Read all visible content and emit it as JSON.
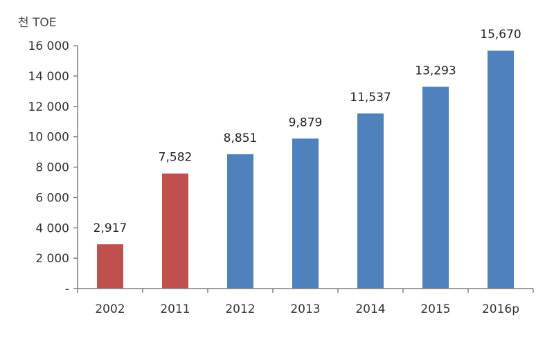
{
  "chart_data": {
    "type": "bar",
    "title": "",
    "xlabel": "",
    "ylabel": "천 TOE",
    "categories": [
      "2002",
      "2011",
      "2012",
      "2013",
      "2014",
      "2015",
      "2016p"
    ],
    "values": [
      2917,
      7582,
      8851,
      9879,
      11537,
      13293,
      15670
    ],
    "value_labels": [
      "2,917",
      "7,582",
      "8,851",
      "9,879",
      "11,537",
      "13,293",
      "15,670"
    ],
    "bar_colors": [
      "#c0504d",
      "#c0504d",
      "#4f81bd",
      "#4f81bd",
      "#4f81bd",
      "#4f81bd",
      "#4f81bd"
    ],
    "ylim": [
      0,
      16000
    ],
    "yticks": [
      0,
      2000,
      4000,
      6000,
      8000,
      10000,
      12000,
      14000,
      16000
    ],
    "ytick_labels": [
      "-",
      "2 000",
      "4 000",
      "6 000",
      "8 000",
      "10 000",
      "12 000",
      "14 000",
      "16 000"
    ],
    "grid": false,
    "legend": "none"
  }
}
